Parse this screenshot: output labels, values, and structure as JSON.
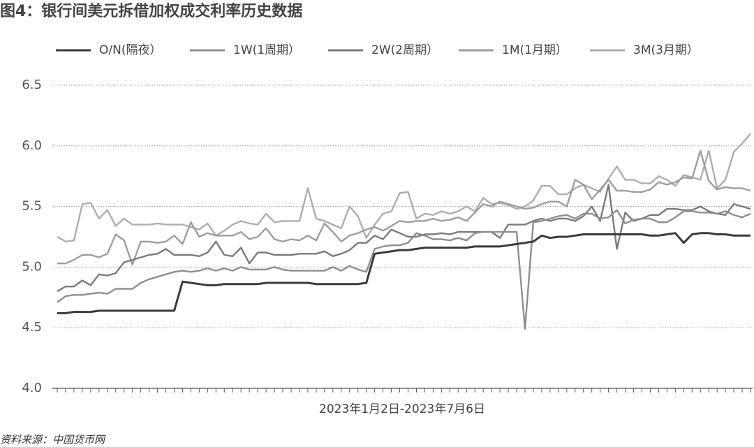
{
  "chart_data": {
    "type": "line",
    "title": "图4：银行间美元拆借加权成交利率历史数据",
    "x_label": "2023年1月2日-2023年7月6日",
    "source": "资料来源：中国货币网",
    "ylim": [
      4,
      6.5
    ],
    "yticks": [
      {
        "value": 4,
        "label": "4.0"
      },
      4.5,
      {
        "value": 5,
        "label": "5.0"
      },
      5.5,
      {
        "value": 6,
        "label": "6.0"
      },
      6.5
    ],
    "grid": true,
    "series": [
      {
        "name": "O/N(隔夜）",
        "color": "#3a3a3a",
        "values": [
          4.62,
          4.62,
          4.63,
          4.63,
          4.63,
          4.64,
          4.64,
          4.64,
          4.64,
          4.64,
          4.64,
          4.64,
          4.64,
          4.64,
          4.64,
          4.88,
          4.87,
          4.86,
          4.85,
          4.85,
          4.86,
          4.86,
          4.86,
          4.86,
          4.86,
          4.87,
          4.87,
          4.87,
          4.87,
          4.87,
          4.87,
          4.86,
          4.86,
          4.86,
          4.86,
          4.86,
          4.86,
          4.87,
          5.11,
          5.12,
          5.13,
          5.14,
          5.14,
          5.15,
          5.16,
          5.16,
          5.16,
          5.16,
          5.16,
          5.16,
          5.17,
          5.17,
          5.17,
          5.17,
          5.18,
          5.19,
          5.2,
          5.21,
          5.26,
          5.24,
          5.25,
          5.25,
          5.26,
          5.27,
          5.27,
          5.27,
          5.27,
          5.27,
          5.27,
          5.27,
          5.27,
          5.26,
          5.26,
          5.27,
          5.28,
          5.2,
          5.27,
          5.28,
          5.28,
          5.27,
          5.27,
          5.26,
          5.26,
          5.26
        ]
      },
      {
        "name": "1W(1周期）",
        "color": "#8e8e8e",
        "values": [
          4.71,
          4.76,
          4.77,
          4.77,
          4.78,
          4.79,
          4.78,
          4.82,
          4.82,
          4.82,
          4.87,
          4.9,
          4.92,
          4.94,
          4.96,
          4.97,
          4.96,
          4.97,
          4.99,
          4.97,
          4.99,
          4.97,
          5.0,
          4.98,
          4.98,
          4.98,
          5.0,
          4.98,
          4.97,
          4.97,
          4.97,
          4.97,
          4.97,
          5.0,
          4.97,
          5.01,
          4.98,
          4.96,
          5.15,
          5.17,
          5.18,
          5.18,
          5.2,
          5.28,
          5.26,
          5.23,
          5.23,
          5.22,
          5.24,
          5.22,
          5.28,
          5.29,
          5.29,
          5.29,
          5.29,
          5.29,
          4.49,
          5.37,
          5.38,
          5.4,
          5.42,
          5.43,
          5.4,
          5.44,
          5.44,
          5.4,
          5.41,
          5.47,
          5.36,
          5.39,
          5.4,
          5.4,
          5.37,
          5.37,
          5.41,
          5.46,
          5.46,
          5.45,
          5.45,
          5.44,
          5.46,
          5.43,
          5.41,
          5.44
        ]
      },
      {
        "name": "2W(2周期）",
        "color": "#7a7a7a",
        "values": [
          4.8,
          4.84,
          4.84,
          4.89,
          4.85,
          4.94,
          4.93,
          4.95,
          5.04,
          5.06,
          5.08,
          5.1,
          5.11,
          5.15,
          5.1,
          5.1,
          5.1,
          5.09,
          5.12,
          5.21,
          5.1,
          5.09,
          5.16,
          5.03,
          5.12,
          5.12,
          5.1,
          5.1,
          5.1,
          5.11,
          5.11,
          5.11,
          5.13,
          5.09,
          5.11,
          5.14,
          5.2,
          5.2,
          5.26,
          5.23,
          5.31,
          5.28,
          5.25,
          5.25,
          5.27,
          5.27,
          5.28,
          5.27,
          5.29,
          5.29,
          5.29,
          5.29,
          5.29,
          5.24,
          5.35,
          5.35,
          5.35,
          5.38,
          5.4,
          5.38,
          5.4,
          5.4,
          5.38,
          5.42,
          5.5,
          5.38,
          5.68,
          5.15,
          5.45,
          5.38,
          5.4,
          5.43,
          5.43,
          5.48,
          5.48,
          5.47,
          5.47,
          5.5,
          5.46,
          5.44,
          5.43,
          5.52,
          5.5,
          5.48
        ]
      },
      {
        "name": "1M(1月期）",
        "color": "#9d9d9d",
        "values": [
          5.03,
          5.03,
          5.06,
          5.1,
          5.1,
          5.08,
          5.11,
          5.27,
          5.22,
          5.02,
          5.21,
          5.21,
          5.2,
          5.21,
          5.26,
          5.19,
          5.37,
          5.25,
          5.28,
          5.26,
          5.26,
          5.26,
          5.29,
          5.23,
          5.25,
          5.32,
          5.23,
          5.21,
          5.23,
          5.22,
          5.26,
          5.22,
          5.36,
          5.29,
          5.21,
          5.26,
          5.28,
          5.31,
          5.33,
          5.3,
          5.34,
          5.38,
          5.37,
          5.38,
          5.38,
          5.4,
          5.38,
          5.39,
          5.41,
          5.38,
          5.45,
          5.52,
          5.5,
          5.54,
          5.52,
          5.5,
          5.48,
          5.49,
          5.52,
          5.54,
          5.54,
          5.5,
          5.72,
          5.68,
          5.56,
          5.64,
          5.72,
          5.63,
          5.63,
          5.62,
          5.62,
          5.64,
          5.7,
          5.68,
          5.7,
          5.74,
          5.73,
          5.96,
          5.71,
          5.64,
          5.66,
          5.65,
          5.65,
          5.63
        ]
      },
      {
        "name": "3M(3月期）",
        "color": "#adadad",
        "values": [
          5.25,
          5.21,
          5.22,
          5.52,
          5.53,
          5.4,
          5.47,
          5.34,
          5.4,
          5.35,
          5.35,
          5.35,
          5.36,
          5.35,
          5.35,
          5.35,
          5.33,
          5.31,
          5.36,
          5.26,
          5.3,
          5.35,
          5.38,
          5.36,
          5.35,
          5.44,
          5.37,
          5.38,
          5.38,
          5.38,
          5.65,
          5.4,
          5.38,
          5.35,
          5.32,
          5.5,
          5.42,
          5.24,
          5.35,
          5.44,
          5.46,
          5.61,
          5.62,
          5.4,
          5.44,
          5.43,
          5.46,
          5.44,
          5.46,
          5.5,
          5.46,
          5.57,
          5.52,
          5.53,
          5.51,
          5.48,
          5.5,
          5.55,
          5.67,
          5.67,
          5.6,
          5.6,
          5.65,
          5.68,
          5.65,
          5.62,
          5.73,
          5.83,
          5.72,
          5.72,
          5.69,
          5.69,
          5.75,
          5.72,
          5.67,
          5.76,
          5.74,
          5.72,
          5.96,
          5.65,
          5.72,
          5.95,
          6.02,
          6.1
        ]
      }
    ]
  }
}
